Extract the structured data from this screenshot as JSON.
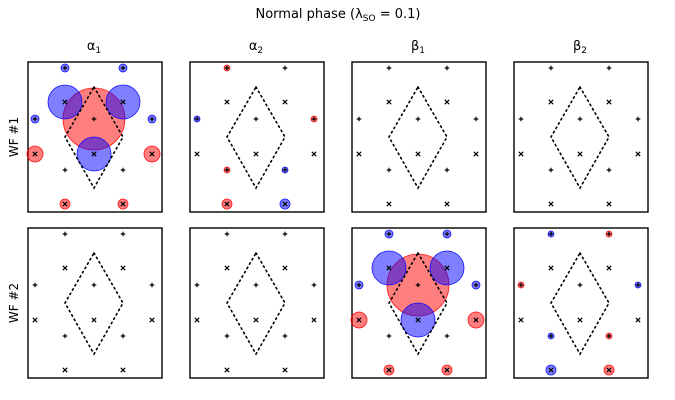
{
  "figure": {
    "title": "Normal phase (λ",
    "title_sub": "SO",
    "title_tail": " = 0.1)",
    "columns": [
      {
        "symbol": "α",
        "sub": "1"
      },
      {
        "symbol": "α",
        "sub": "2"
      },
      {
        "symbol": "β",
        "sub": "1"
      },
      {
        "symbol": "β",
        "sub": "2"
      }
    ],
    "rows": [
      {
        "label": "WF #1"
      },
      {
        "label": "WF #2"
      }
    ],
    "colors": {
      "positive": "#ff0000",
      "negative": "#0000ff",
      "frame": "#000000"
    }
  }
}
